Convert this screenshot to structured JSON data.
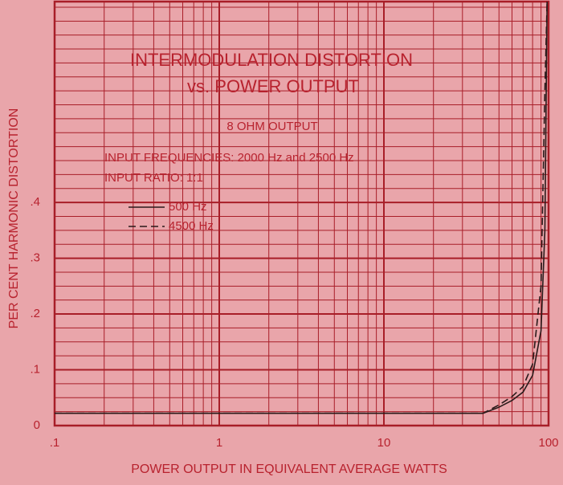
{
  "chart_data": {
    "type": "line",
    "title": "INTERMODULATION DISTORTION",
    "subtitle": "vs. POWER OUTPUT",
    "annotations": [
      "8 OHM OUTPUT",
      "INPUT FREQUENCIES: 2000 Hz and 2500 Hz",
      "INPUT RATIO: 1:1"
    ],
    "x_label": "POWER OUTPUT IN EQUIVALENT AVERAGE WATTS",
    "y_label": "PER CENT HARMONIC DISTORTION",
    "x": [
      0.1,
      1,
      10,
      40,
      50,
      60,
      70,
      80,
      90,
      95,
      98
    ],
    "series": [
      {
        "name": "500 Hz",
        "color": "#2a1a1a",
        "dash": false,
        "values": [
          0.022,
          0.022,
          0.022,
          0.022,
          0.033,
          0.045,
          0.06,
          0.09,
          0.17,
          0.35,
          0.76
        ]
      },
      {
        "name": "4500 Hz",
        "color": "#2a1a1a",
        "dash": true,
        "values": [
          0.022,
          0.022,
          0.022,
          0.022,
          0.037,
          0.052,
          0.07,
          0.11,
          0.25,
          0.6,
          0.76
        ]
      }
    ],
    "xlim": [
      0.1,
      100
    ],
    "xticks": [
      {
        "value": 0.1,
        "label": ".1"
      },
      1,
      10,
      100
    ],
    "xlog": true,
    "ylim": [
      0,
      0.76
    ],
    "yticks": [
      0,
      {
        "value": 0.1,
        "label": ".1"
      },
      {
        "value": 0.2,
        "label": ".2"
      },
      {
        "value": 0.3,
        "label": ".3"
      },
      {
        "value": 0.4,
        "label": ".4"
      }
    ],
    "grid": true
  }
}
